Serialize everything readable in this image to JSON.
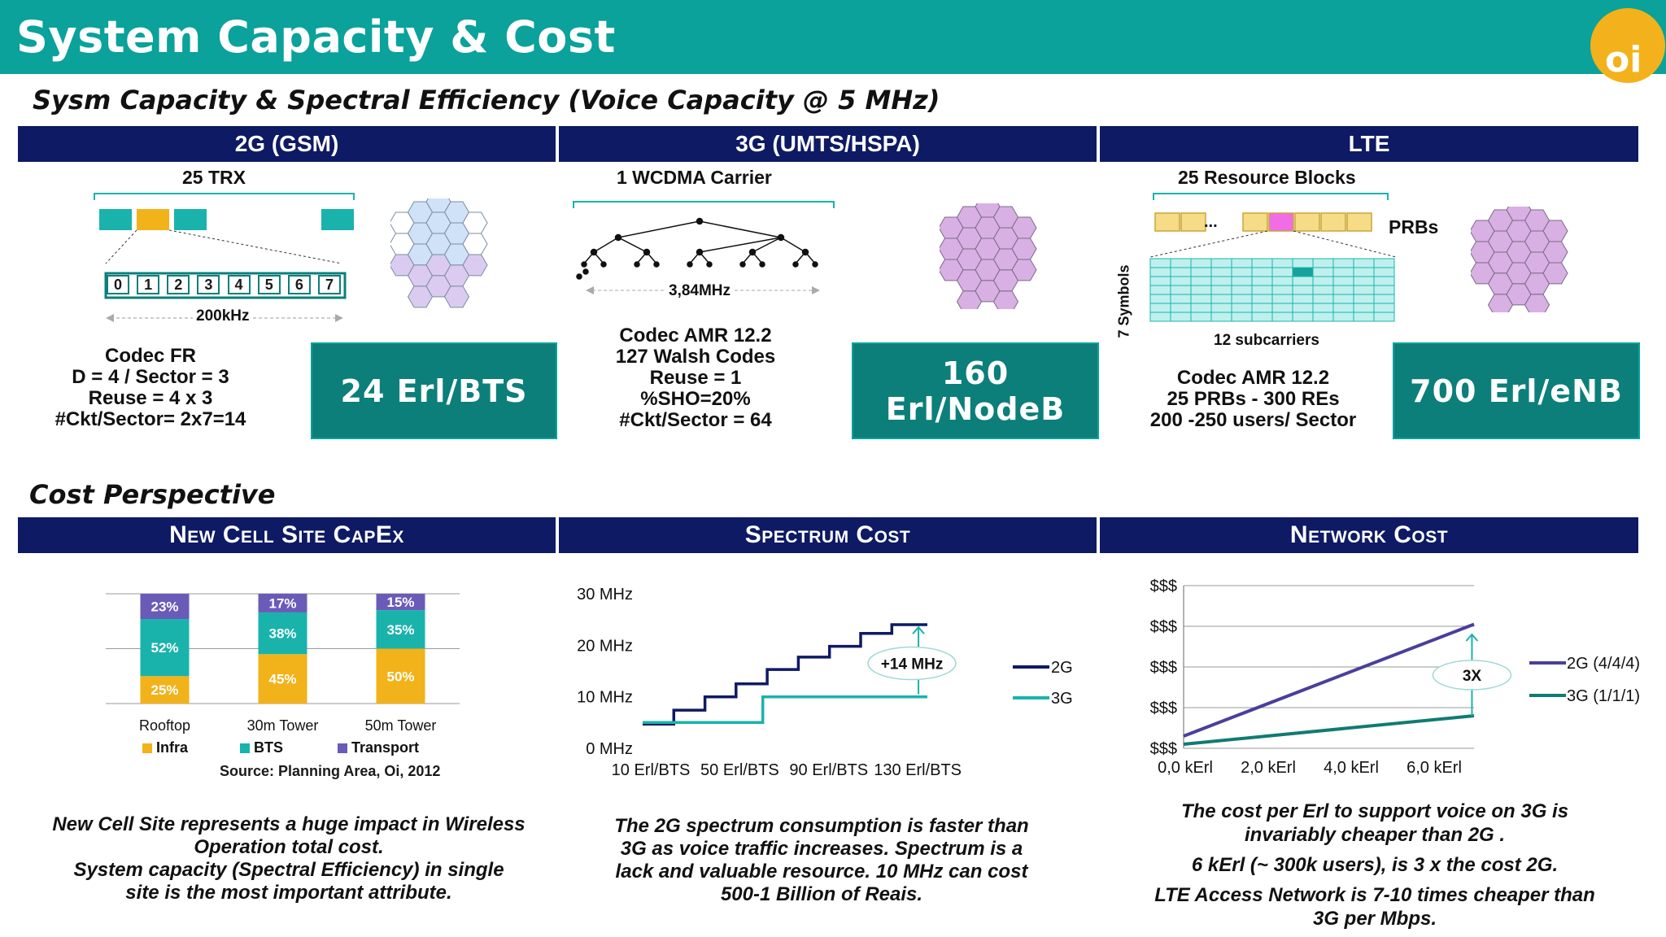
{
  "header": {
    "title": "System Capacity & Cost",
    "logo_text": "oi",
    "colors": {
      "header": "#0aa29a",
      "column_head": "#0e1a63",
      "kpi": "#0c7f7a",
      "logo": "#f3b21b"
    }
  },
  "capacity": {
    "section_title": "Sysm Capacity & Spectral Efficiency (Voice Capacity @ 5 MHz)",
    "columns": [
      {
        "head": "2G (GSM)",
        "diagram_top": "25 TRX",
        "timeslots": [
          "0",
          "1",
          "2",
          "3",
          "4",
          "5",
          "6",
          "7"
        ],
        "bandwidth": "200kHz",
        "spec": [
          "Codec FR",
          "D = 4 / Sector = 3",
          "Reuse = 4 x 3",
          "#Ckt/Sector= 2x7=14"
        ],
        "kpi": "24 Erl/BTS"
      },
      {
        "head": "3G (UMTS/HSPA)",
        "diagram_top": "1 WCDMA Carrier",
        "bandwidth": "3,84MHz",
        "spec": [
          "Codec AMR 12.2",
          "127 Walsh Codes",
          "Reuse = 1",
          "%SHO=20%",
          "#Ckt/Sector = 64"
        ],
        "kpi": "160 Erl/NodeB"
      },
      {
        "head": "LTE",
        "diagram_top": "25 Resource Blocks",
        "prbs_label": "PRBs",
        "ellipsis": "...",
        "symbols_label": "7 Symbols",
        "subcarriers_label": "12  subcarriers",
        "spec": [
          "Codec AMR 12.2",
          "25 PRBs - 300 REs",
          "200 -250 users/ Sector"
        ],
        "kpi": "700 Erl/eNB"
      }
    ]
  },
  "cost": {
    "section_title": "Cost Perspective",
    "columns": [
      {
        "head": "New Cell Site CapEx",
        "caption": [
          "New Cell Site represents a huge impact in Wireless",
          "Operation  total cost.",
          "System capacity  (Spectral Efficiency) in single",
          "site is the most important attribute."
        ]
      },
      {
        "head": "Spectrum Cost",
        "caption": [
          "The 2G spectrum consumption is faster than",
          "3G as voice traffic increases. Spectrum is a",
          "lack and valuable resource. 10 MHz can cost",
          "500-1 Billion of Reais."
        ]
      },
      {
        "head": "Network Cost",
        "caption": [
          "The cost per Erl to support voice on 3G is",
          "invariably cheaper than 2G .",
          "6 kErl (~ 300k users), is 3 x the cost 2G.",
          "LTE Access Network is 7-10 times cheaper than",
          "3G per Mbps."
        ]
      }
    ],
    "source": "Source: Planning Area, Oi, 2012"
  },
  "chart_data": [
    {
      "type": "bar",
      "stacked": true,
      "categories": [
        "Rooftop",
        "30m Tower",
        "50m Tower"
      ],
      "series": [
        {
          "name": "Infra",
          "values": [
            25,
            45,
            50
          ],
          "labels": [
            "25%",
            "45%",
            "50%"
          ],
          "color": "#f2b21a"
        },
        {
          "name": "BTS",
          "values": [
            52,
            38,
            35
          ],
          "labels": [
            "52%",
            "38%",
            "35%"
          ],
          "color": "#19b3ac"
        },
        {
          "name": "Transport",
          "values": [
            23,
            17,
            15
          ],
          "labels": [
            "23%",
            "17%",
            "15%"
          ],
          "color": "#6a5bb8"
        }
      ],
      "ylim": [
        0,
        100
      ],
      "grid": true,
      "legend": "bottom"
    },
    {
      "type": "line",
      "series": [
        {
          "name": "2G",
          "color": "#0e1a63",
          "points": [
            [
              0,
              4.7
            ],
            [
              7,
              4.7
            ],
            [
              7,
              7.4
            ],
            [
              14,
              7.4
            ],
            [
              14,
              10
            ],
            [
              21,
              10
            ],
            [
              21,
              12.5
            ],
            [
              28,
              12.5
            ],
            [
              28,
              15.3
            ],
            [
              35,
              15.3
            ],
            [
              35,
              17.7
            ],
            [
              42,
              17.7
            ],
            [
              42,
              19.8
            ],
            [
              49,
              19.8
            ],
            [
              49,
              22.3
            ],
            [
              56,
              22.3
            ],
            [
              56,
              24
            ],
            [
              64,
              24
            ]
          ]
        },
        {
          "name": "3G",
          "color": "#19b3ac",
          "points": [
            [
              0,
              5
            ],
            [
              27,
              5
            ],
            [
              27,
              10
            ],
            [
              64,
              10
            ]
          ]
        }
      ],
      "x_ticks": [
        "10 Erl/BTS",
        "50 Erl/BTS",
        "90 Erl/BTS",
        "130 Erl/BTS"
      ],
      "y_ticks": [
        "0 MHz",
        "10 MHz",
        "20 MHz",
        "30 MHz"
      ],
      "ylim": [
        0,
        30
      ],
      "annotation": "+14 MHz",
      "legend": "right"
    },
    {
      "type": "line",
      "series": [
        {
          "name": "2G (4/4/4)",
          "color": "#4a3f9a",
          "points": [
            [
              0,
              0.3
            ],
            [
              7,
              3.05
            ]
          ]
        },
        {
          "name": "3G (1/1/1)",
          "color": "#107b72",
          "points": [
            [
              0,
              0.1
            ],
            [
              7,
              0.8
            ]
          ]
        }
      ],
      "x_ticks": [
        "0,0 kErl",
        "2,0 kErl",
        "4,0 kErl",
        "6,0 kErl"
      ],
      "y_ticks": [
        "$$$",
        "$$$",
        "$$$",
        "$$$",
        "$$$"
      ],
      "ylim": [
        0,
        4
      ],
      "annotation": "3X",
      "legend": "right"
    }
  ]
}
